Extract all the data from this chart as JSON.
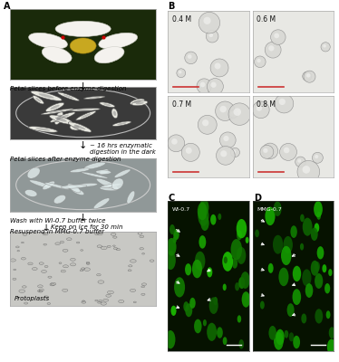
{
  "bg_color": "#ffffff",
  "panel_A_label": "A",
  "panel_B_label": "B",
  "panel_C_label": "C",
  "panel_D_label": "D",
  "panel_label_fontsize": 7,
  "text_fontsize": 5.0,
  "step_texts": [
    "Petal slices before enzyme digestion",
    "~ 16 hrs enzymatic\ndigestion in the dark",
    "Petal slices after enzyme digestion",
    "Wash with WI-0.7 buffer twice",
    "Keep on ice for 30 min",
    "Resuspend in MMG-0.7 buffer"
  ],
  "protoplasts_label": "Protoplasts",
  "B_labels": [
    "0.4 M",
    "0.6 M",
    "0.7 M",
    "0.8 M"
  ],
  "C_label": "WI-0.7",
  "D_label": "MMG-0.7",
  "scale_bar_color": "#cc3333",
  "fluor_bg": "#061200"
}
